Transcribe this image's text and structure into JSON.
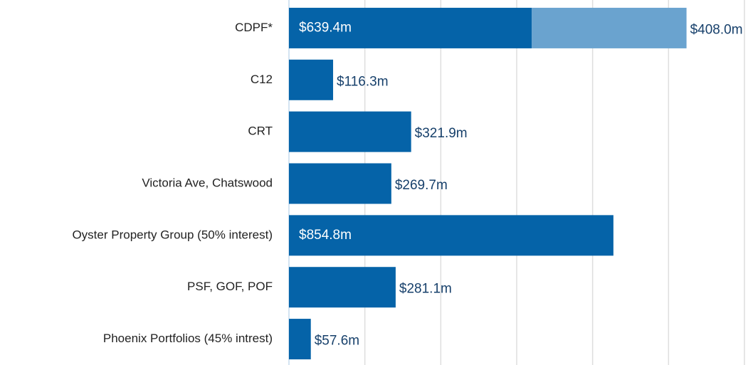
{
  "chart_data": {
    "type": "stacked_barh",
    "categories": [
      "CDPF*",
      "C12",
      "CRT",
      "Victoria Ave, Chatswood",
      "Oyster Property Group (50% interest)",
      "PSF, GOF, POF",
      "Phoenix Portfolios (45% intrest)"
    ],
    "series": [
      {
        "color": "#0563a8",
        "values": [
          639.4,
          116.3,
          321.9,
          269.7,
          854.8,
          281.1,
          57.6
        ],
        "value_labels": [
          "$639.4m",
          "$116.3m",
          "$321.9m",
          "$269.7m",
          "$854.8m",
          "$281.1m",
          "$57.6m"
        ]
      },
      {
        "color": "#6aa3cf",
        "values": [
          408.0,
          null,
          null,
          null,
          null,
          null,
          null
        ],
        "value_labels": [
          "$408.0m",
          null,
          null,
          null,
          null,
          null,
          null
        ]
      }
    ],
    "xlim": [
      0,
      1200
    ],
    "xticks": [
      0,
      200,
      400,
      600,
      800,
      1000,
      1200
    ],
    "grid": true
  }
}
